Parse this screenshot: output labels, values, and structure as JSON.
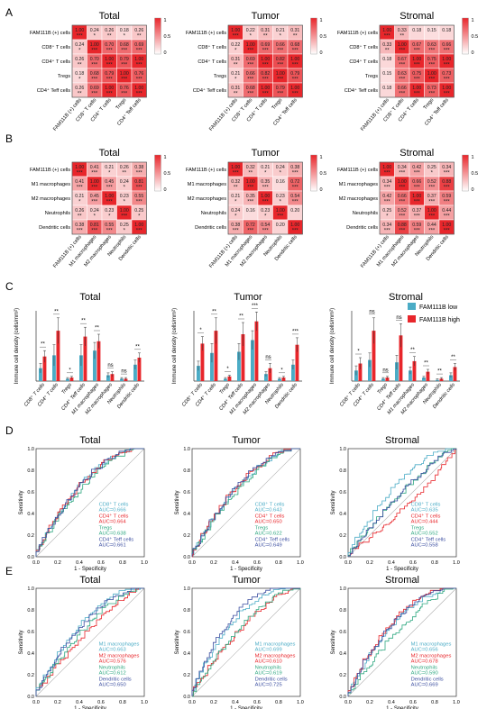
{
  "panel_letters": [
    "A",
    "B",
    "C",
    "D",
    "E"
  ],
  "colors": {
    "heat_low": "#ffffff",
    "heat_high": "#e8262b",
    "bar_low": "#4bacc6",
    "bar_high": "#e8262b",
    "roc": [
      "#4bacc6",
      "#e8262b",
      "#2fa880",
      "#3b4ea0"
    ],
    "diagonal": "#b0b0b0"
  },
  "heatmap_scale": {
    "max_label": "1",
    "mid_label": "0.5",
    "min_label": "0"
  },
  "chart_data": [
    {
      "panel": "A",
      "type": "heatmap",
      "labels": [
        "FAM111B (+) cells",
        "CD8⁺ T cells",
        "CD4⁺ T cells",
        "Tregs",
        "CD4⁺ Teff cells"
      ],
      "heatmaps": [
        {
          "title": "Total",
          "values": [
            [
              1.0,
              0.24,
              0.26,
              0.18,
              0.26
            ],
            [
              0.24,
              1.0,
              0.7,
              0.68,
              0.69
            ],
            [
              0.26,
              0.7,
              1.0,
              0.79,
              1.0
            ],
            [
              0.18,
              0.68,
              0.79,
              1.0,
              0.76
            ],
            [
              0.26,
              0.69,
              1.0,
              0.76,
              1.0
            ]
          ],
          "stars": [
            [
              "***",
              "*",
              "**",
              "*",
              "**"
            ],
            [
              "*",
              "***",
              "***",
              "***",
              "***"
            ],
            [
              "**",
              "***",
              "***",
              "***",
              "***"
            ],
            [
              "*",
              "***",
              "***",
              "***",
              "***"
            ],
            [
              "**",
              "***",
              "***",
              "***",
              "***"
            ]
          ]
        },
        {
          "title": "Tumor",
          "values": [
            [
              1.0,
              0.22,
              0.31,
              0.21,
              0.31
            ],
            [
              0.22,
              1.0,
              0.69,
              0.66,
              0.68
            ],
            [
              0.31,
              0.69,
              1.0,
              0.82,
              1.0
            ],
            [
              0.21,
              0.66,
              0.82,
              1.0,
              0.79
            ],
            [
              0.31,
              0.68,
              1.0,
              0.79,
              1.0
            ]
          ],
          "stars": [
            [
              "***",
              "*",
              "**",
              "*",
              "**"
            ],
            [
              "*",
              "***",
              "***",
              "***",
              "***"
            ],
            [
              "**",
              "***",
              "***",
              "***",
              "***"
            ],
            [
              "*",
              "***",
              "***",
              "***",
              "***"
            ],
            [
              "**",
              "***",
              "***",
              "***",
              "***"
            ]
          ]
        },
        {
          "title": "Stromal",
          "values": [
            [
              1.0,
              0.33,
              0.18,
              0.15,
              0.18
            ],
            [
              0.33,
              1.0,
              0.67,
              0.63,
              0.66
            ],
            [
              0.18,
              0.67,
              1.0,
              0.75,
              1.0
            ],
            [
              0.15,
              0.63,
              0.75,
              1.0,
              0.73
            ],
            [
              0.18,
              0.66,
              1.0,
              0.73,
              1.0
            ]
          ],
          "stars": [
            [
              "***",
              "**",
              "",
              "",
              ""
            ],
            [
              "**",
              "***",
              "***",
              "***",
              "***"
            ],
            [
              "",
              "***",
              "***",
              "***",
              "***"
            ],
            [
              "",
              "***",
              "***",
              "***",
              "***"
            ],
            [
              "",
              "***",
              "***",
              "***",
              "***"
            ]
          ]
        }
      ]
    },
    {
      "panel": "B",
      "type": "heatmap",
      "labels": [
        "FAM111B (+) cells",
        "M1 macrophages",
        "M2 macrophages",
        "Neutrophils",
        "Dendritic cells"
      ],
      "heatmaps": [
        {
          "title": "Total",
          "values": [
            [
              1.0,
              0.41,
              0.21,
              0.26,
              0.38
            ],
            [
              0.41,
              1.0,
              0.45,
              0.24,
              0.81
            ],
            [
              0.21,
              0.45,
              1.0,
              0.23,
              0.55
            ],
            [
              0.26,
              0.24,
              0.23,
              1.0,
              0.25
            ],
            [
              0.38,
              0.81,
              0.55,
              0.25,
              1.0
            ]
          ],
          "stars": [
            [
              "***",
              "***",
              "*",
              "**",
              "***"
            ],
            [
              "***",
              "***",
              "***",
              "*",
              "***"
            ],
            [
              "*",
              "***",
              "***",
              "*",
              "***"
            ],
            [
              "**",
              "*",
              "*",
              "***",
              "*"
            ],
            [
              "***",
              "***",
              "***",
              "*",
              "***"
            ]
          ]
        },
        {
          "title": "Tumor",
          "values": [
            [
              1.0,
              0.32,
              0.21,
              0.24,
              0.38
            ],
            [
              0.32,
              1.0,
              0.35,
              0.16,
              0.72
            ],
            [
              0.21,
              0.35,
              1.0,
              0.23,
              0.54
            ],
            [
              0.24,
              0.16,
              0.23,
              1.0,
              0.2
            ],
            [
              0.38,
              0.72,
              0.54,
              0.2,
              1.0
            ]
          ],
          "stars": [
            [
              "***",
              "**",
              "*",
              "*",
              "***"
            ],
            [
              "**",
              "***",
              "***",
              "",
              "***"
            ],
            [
              "*",
              "***",
              "***",
              "*",
              "***"
            ],
            [
              "*",
              "",
              "*",
              "***",
              ""
            ],
            [
              "***",
              "***",
              "***",
              "",
              "***"
            ]
          ]
        },
        {
          "title": "Stromal",
          "values": [
            [
              1.0,
              0.34,
              0.42,
              0.25,
              0.34
            ],
            [
              0.34,
              1.0,
              0.66,
              0.52,
              0.88
            ],
            [
              0.42,
              0.66,
              1.0,
              0.37,
              0.59
            ],
            [
              0.25,
              0.52,
              0.37,
              1.0,
              0.44
            ],
            [
              0.34,
              0.88,
              0.59,
              0.44,
              1.0
            ]
          ],
          "stars": [
            [
              "***",
              "***",
              "***",
              "*",
              "***"
            ],
            [
              "***",
              "***",
              "***",
              "***",
              "***"
            ],
            [
              "***",
              "***",
              "***",
              "***",
              "***"
            ],
            [
              "*",
              "***",
              "***",
              "***",
              "***"
            ],
            [
              "***",
              "***",
              "***",
              "***",
              "***"
            ]
          ]
        }
      ]
    },
    {
      "panel": "C",
      "type": "bar",
      "ylabel": "Immune cell density (cells/mm²)",
      "categories": [
        "CD8⁺ T cells",
        "CD4⁺ T cells",
        "Tregs",
        "CD4⁺ Teff cells",
        "M1 macrophages",
        "M2 macrophages",
        "Neutrophils",
        "Dendritic cells"
      ],
      "legend": [
        "FAM111B low",
        "FAM111B high"
      ],
      "legend_position": "top-right",
      "charts": [
        {
          "title": "Total",
          "series": [
            {
              "name": "FAM111B low",
              "values": [
                11,
                22,
                2,
                22,
                26,
                5,
                2,
                14
              ],
              "err": [
                4,
                9,
                1,
                9,
                7,
                2,
                1,
                4
              ]
            },
            {
              "name": "FAM111B high",
              "values": [
                21,
                43,
                3,
                38,
                34,
                6,
                2,
                20
              ],
              "err": [
                5,
                11,
                1,
                8,
                6,
                2,
                1,
                4
              ]
            }
          ],
          "sig": [
            "**",
            "**",
            "*",
            "**",
            "**",
            "ns",
            "ns",
            "**"
          ]
        },
        {
          "title": "Tumor",
          "series": [
            {
              "name": "FAM111B low",
              "values": [
                13,
                24,
                2,
                25,
                35,
                6,
                2,
                14
              ],
              "err": [
                4,
                8,
                1,
                7,
                8,
                2,
                1,
                4
              ]
            },
            {
              "name": "FAM111B high",
              "values": [
                32,
                43,
                4,
                40,
                51,
                11,
                3,
                31
              ],
              "err": [
                6,
                11,
                1,
                10,
                8,
                4,
                1,
                6
              ]
            }
          ],
          "sig": [
            "*",
            "**",
            "*",
            "**",
            "***",
            "ns",
            "*",
            "***"
          ]
        },
        {
          "title": "Stromal",
          "series": [
            {
              "name": "FAM111B low",
              "values": [
                9,
                18,
                2,
                16,
                9,
                3,
                1,
                5
              ],
              "err": [
                4,
                6,
                1,
                6,
                3,
                1,
                1,
                2
              ]
            },
            {
              "name": "FAM111B high",
              "values": [
                15,
                43,
                3,
                39,
                17,
                8,
                2,
                12
              ],
              "err": [
                5,
                11,
                1,
                10,
                4,
                2,
                1,
                3
              ]
            }
          ],
          "sig": [
            "*",
            "ns",
            "ns",
            "ns",
            "**",
            "**",
            "**",
            "**"
          ]
        }
      ]
    },
    {
      "panel": "D",
      "type": "line",
      "xlabel": "1 - Specificity",
      "ylabel": "Sensitivity",
      "ticks": [
        "0.0",
        "0.2",
        "0.4",
        "0.6",
        "0.8",
        "1.0"
      ],
      "charts": [
        {
          "title": "Total",
          "series": [
            {
              "name": "CD8⁺ T cells",
              "auc_text": "AUC=0.666",
              "curve": "A",
              "seed": 11
            },
            {
              "name": "CD4⁺ T cells",
              "auc_text": "AUC=0.664",
              "curve": "B",
              "seed": 12
            },
            {
              "name": "Tregs",
              "auc_text": "AUC=0.638",
              "curve": "C",
              "seed": 13
            },
            {
              "name": "CD4⁺ Teff cells",
              "auc_text": "AUC=0.661",
              "curve": "D",
              "seed": 14
            }
          ]
        },
        {
          "title": "Tumor",
          "series": [
            {
              "name": "CD8⁺ T cells",
              "auc_text": "AUC=0.643",
              "curve": "A",
              "seed": 21
            },
            {
              "name": "CD4⁺ T cells",
              "auc_text": "AUC=0.650",
              "curve": "B",
              "seed": 22
            },
            {
              "name": "Tregs",
              "auc_text": "AUC=0.622",
              "curve": "C",
              "seed": 23
            },
            {
              "name": "CD4⁺ Teff cells",
              "auc_text": "AUC=0.649",
              "curve": "D",
              "seed": 24
            }
          ]
        },
        {
          "title": "Stromal",
          "series": [
            {
              "name": "CD8⁺ T cells",
              "auc_text": "AUC=0.635",
              "curve": "A",
              "seed": 31
            },
            {
              "name": "CD4⁺ T cells",
              "auc_text": "AUC=0.444",
              "curve": "B",
              "seed": 32
            },
            {
              "name": "Tregs",
              "auc_text": "AUC=0.552",
              "curve": "C",
              "seed": 33
            },
            {
              "name": "CD4⁺ Teff cells",
              "auc_text": "AUC=0.558",
              "curve": "D",
              "seed": 34
            }
          ]
        }
      ]
    },
    {
      "panel": "E",
      "type": "line",
      "xlabel": "1 - Specificity",
      "ylabel": "Sensitivity",
      "ticks": [
        "0.0",
        "0.2",
        "0.4",
        "0.6",
        "0.8",
        "1.0"
      ],
      "charts": [
        {
          "title": "Total",
          "series": [
            {
              "name": "M1 macrophages",
              "auc_text": "AUC=0.663",
              "curve": "A",
              "seed": 41
            },
            {
              "name": "M2 macrophages",
              "auc_text": "AUC=0.576",
              "curve": "B",
              "seed": 42
            },
            {
              "name": "Neutrophils",
              "auc_text": "AUC=0.612",
              "curve": "C",
              "seed": 43
            },
            {
              "name": "Dendritic cells",
              "auc_text": "AUC=0.650",
              "curve": "D",
              "seed": 44
            }
          ]
        },
        {
          "title": "Tumor",
          "series": [
            {
              "name": "M1 macrophages",
              "auc_text": "AUC=0.699",
              "curve": "A",
              "seed": 51
            },
            {
              "name": "M2 macrophages",
              "auc_text": "AUC=0.610",
              "curve": "B",
              "seed": 52
            },
            {
              "name": "Neutrophils",
              "auc_text": "AUC=0.619",
              "curve": "C",
              "seed": 53
            },
            {
              "name": "Dendritic cells",
              "auc_text": "AUC=0.725",
              "curve": "D",
              "seed": 54
            }
          ]
        },
        {
          "title": "Stromal",
          "series": [
            {
              "name": "M1 macrophages",
              "auc_text": "AUC=0.656",
              "curve": "A",
              "seed": 61
            },
            {
              "name": "M2 macrophages",
              "auc_text": "AUC=0.678",
              "curve": "B",
              "seed": 62
            },
            {
              "name": "Neutrophils",
              "auc_text": "AUC=0.590",
              "curve": "C",
              "seed": 63
            },
            {
              "name": "Dendritic cells",
              "auc_text": "AUC=0.669",
              "curve": "D",
              "seed": 64
            }
          ]
        }
      ]
    }
  ]
}
